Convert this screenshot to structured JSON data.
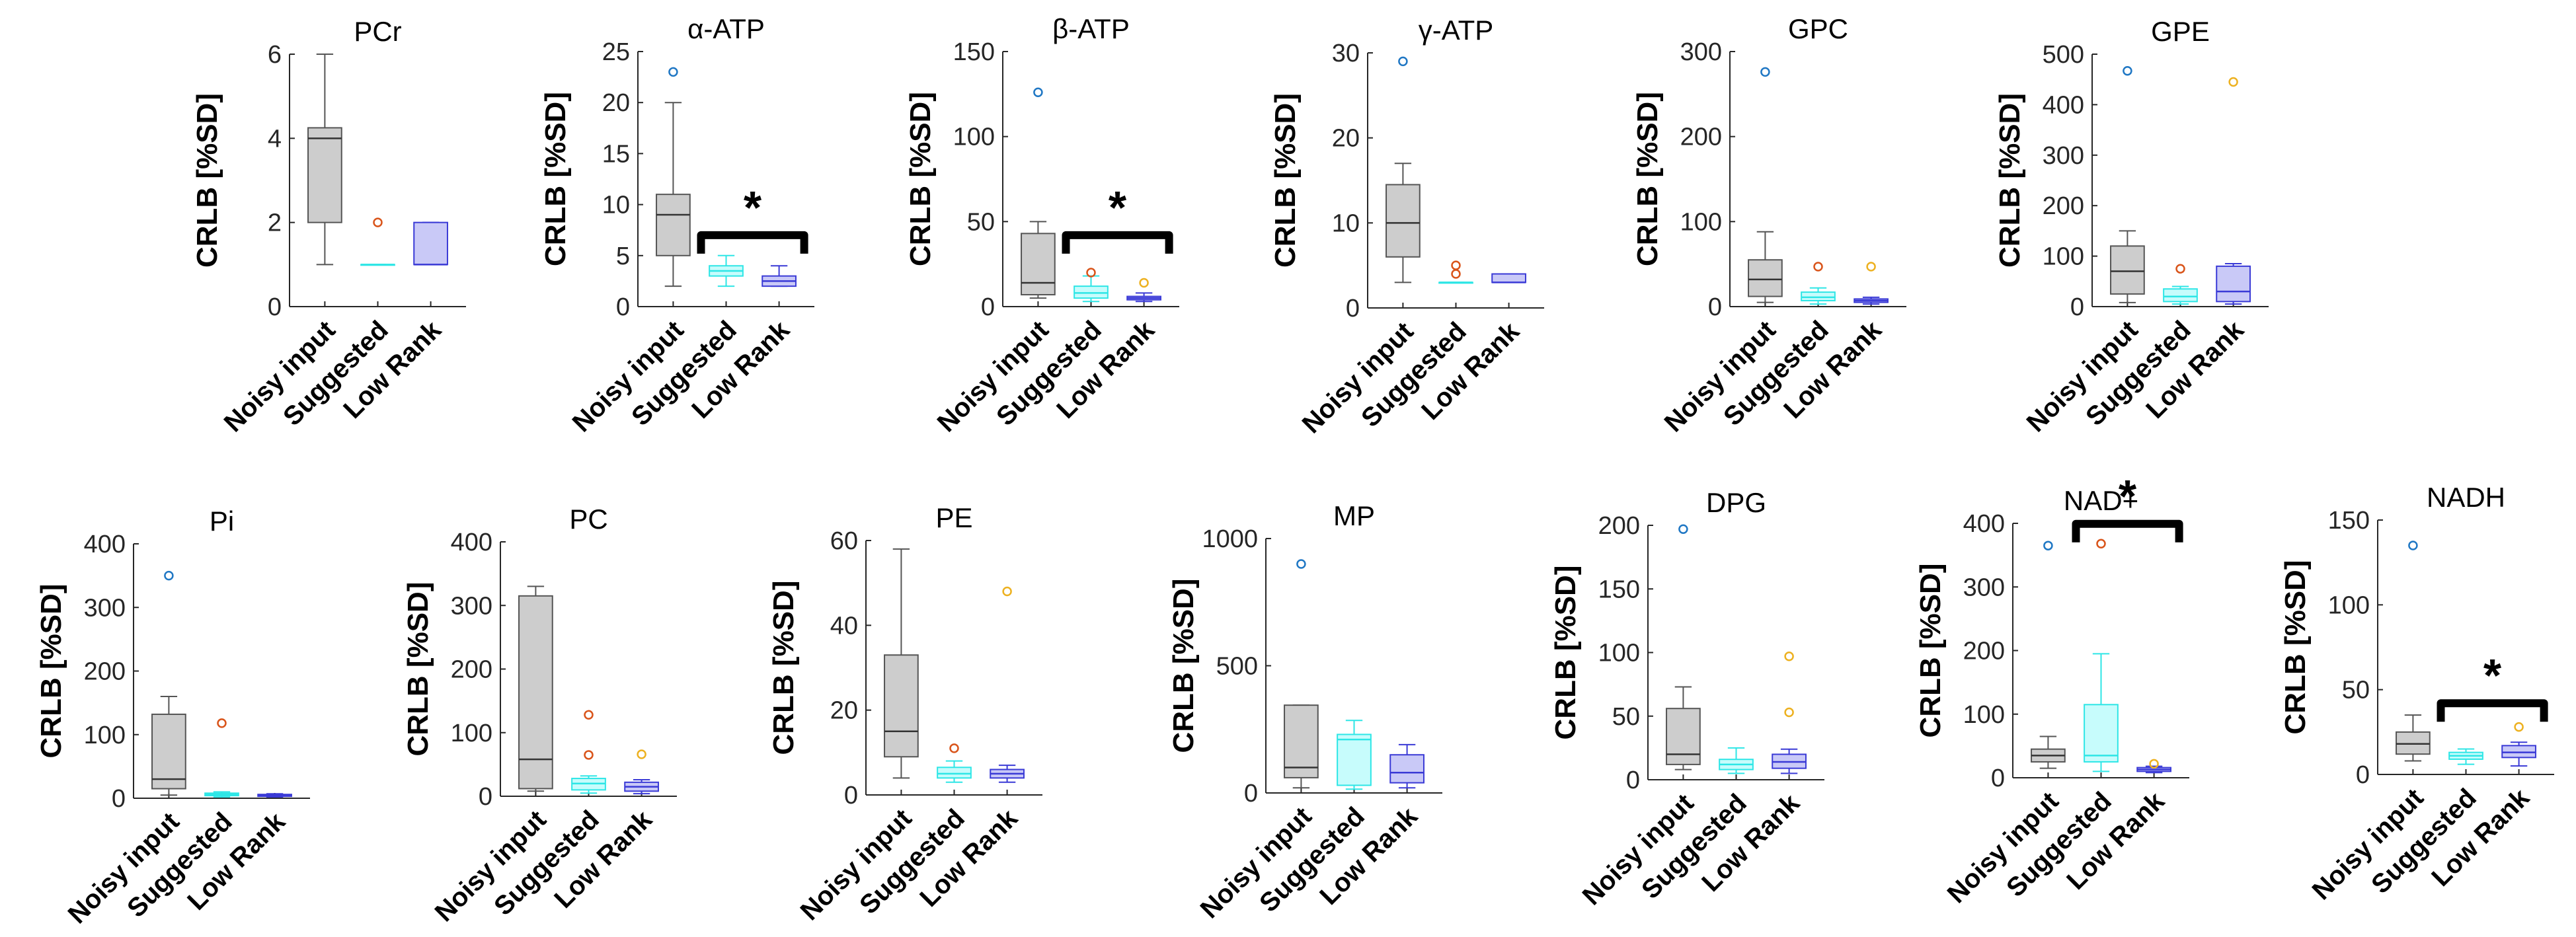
{
  "shared": {
    "ylabel": "CRLB [%SD]",
    "categories": [
      "Noisy input",
      "Suggested",
      "Low Rank"
    ],
    "colors": {
      "noisy_fill": "#cdcdcd",
      "suggested_fill": "#c7fcfc",
      "suggested_edge": "#2ee6e6",
      "lowrank_fill": "#c9c9f7",
      "lowrank_edge": "#3a3ad6",
      "outlier_noisy": "#1f77c4",
      "outlier_suggested": "#d9541a",
      "outlier_lowrank": "#edb120"
    },
    "significance_marker": "*"
  },
  "chart_data": [
    {
      "type": "box",
      "title": "PCr",
      "ylim": [
        0,
        6
      ],
      "yticks": [
        0,
        2,
        4,
        6
      ],
      "series": [
        {
          "name": "Noisy input",
          "min": 1,
          "q1": 2,
          "median": 4,
          "q3": 4.25,
          "max": 6,
          "outliers": []
        },
        {
          "name": "Suggested",
          "min": 1,
          "q1": 1,
          "median": 1,
          "q3": 1,
          "max": 1,
          "outliers": [
            2
          ]
        },
        {
          "name": "Low Rank",
          "min": 1,
          "q1": 1,
          "median": 1,
          "q3": 2,
          "max": 2,
          "outliers": []
        }
      ],
      "significance": null
    },
    {
      "type": "box",
      "title": "α-ATP",
      "ylim": [
        0,
        25
      ],
      "yticks": [
        0,
        5,
        10,
        15,
        20,
        25
      ],
      "series": [
        {
          "name": "Noisy input",
          "min": 2,
          "q1": 5,
          "median": 9,
          "q3": 11,
          "max": 20,
          "outliers": [
            23
          ]
        },
        {
          "name": "Suggested",
          "min": 2,
          "q1": 3,
          "median": 3.5,
          "q3": 4,
          "max": 5,
          "outliers": []
        },
        {
          "name": "Low Rank",
          "min": 2,
          "q1": 2,
          "median": 2.5,
          "q3": 3,
          "max": 4,
          "outliers": []
        }
      ],
      "significance": [
        2,
        3
      ]
    },
    {
      "type": "box",
      "title": "β-ATP",
      "ylim": [
        0,
        150
      ],
      "yticks": [
        0,
        50,
        100,
        150
      ],
      "series": [
        {
          "name": "Noisy input",
          "min": 5,
          "q1": 7,
          "median": 14,
          "q3": 43,
          "max": 50,
          "outliers": [
            126
          ]
        },
        {
          "name": "Suggested",
          "min": 3,
          "q1": 5,
          "median": 8,
          "q3": 12,
          "max": 18,
          "outliers": [
            20
          ]
        },
        {
          "name": "Low Rank",
          "min": 3,
          "q1": 4,
          "median": 5,
          "q3": 6,
          "max": 8,
          "outliers": [
            14
          ]
        }
      ],
      "significance": [
        2,
        3
      ]
    },
    {
      "type": "box",
      "title": "γ-ATP",
      "ylim": [
        0,
        30
      ],
      "yticks": [
        0,
        10,
        20,
        30
      ],
      "series": [
        {
          "name": "Noisy input",
          "min": 3,
          "q1": 6,
          "median": 10,
          "q3": 14.5,
          "max": 17,
          "outliers": [
            29
          ]
        },
        {
          "name": "Suggested",
          "min": 3,
          "q1": 3,
          "median": 3,
          "q3": 3,
          "max": 3,
          "outliers": [
            4,
            5
          ]
        },
        {
          "name": "Low Rank",
          "min": 3,
          "q1": 3,
          "median": 3,
          "q3": 4,
          "max": 4,
          "outliers": []
        }
      ],
      "significance": null
    },
    {
      "type": "box",
      "title": "GPC",
      "ylim": [
        0,
        300
      ],
      "yticks": [
        0,
        100,
        200,
        300
      ],
      "series": [
        {
          "name": "Noisy input",
          "min": 5,
          "q1": 12,
          "median": 32,
          "q3": 55,
          "max": 88,
          "outliers": [
            276
          ]
        },
        {
          "name": "Suggested",
          "min": 3,
          "q1": 7,
          "median": 11,
          "q3": 17,
          "max": 22,
          "outliers": [
            47
          ]
        },
        {
          "name": "Low Rank",
          "min": 3,
          "q1": 5,
          "median": 7,
          "q3": 9,
          "max": 11,
          "outliers": [
            47
          ]
        }
      ],
      "significance": null
    },
    {
      "type": "box",
      "title": "GPE",
      "ylim": [
        0,
        500
      ],
      "yticks": [
        0,
        100,
        200,
        300,
        400,
        500
      ],
      "series": [
        {
          "name": "Noisy input",
          "min": 8,
          "q1": 25,
          "median": 70,
          "q3": 120,
          "max": 150,
          "outliers": [
            467
          ]
        },
        {
          "name": "Suggested",
          "min": 5,
          "q1": 10,
          "median": 20,
          "q3": 35,
          "max": 40,
          "outliers": [
            75
          ]
        },
        {
          "name": "Low Rank",
          "min": 5,
          "q1": 10,
          "median": 30,
          "q3": 80,
          "max": 85,
          "outliers": [
            445
          ]
        }
      ],
      "significance": null
    },
    {
      "type": "box",
      "title": "Pi",
      "ylim": [
        0,
        400
      ],
      "yticks": [
        0,
        100,
        200,
        300,
        400
      ],
      "series": [
        {
          "name": "Noisy input",
          "min": 5,
          "q1": 15,
          "median": 30,
          "q3": 132,
          "max": 160,
          "outliers": [
            350
          ]
        },
        {
          "name": "Suggested",
          "min": 2,
          "q1": 4,
          "median": 6,
          "q3": 8,
          "max": 10,
          "outliers": [
            118
          ]
        },
        {
          "name": "Low Rank",
          "min": 2,
          "q1": 3,
          "median": 4,
          "q3": 6,
          "max": 7,
          "outliers": []
        }
      ],
      "significance": null
    },
    {
      "type": "box",
      "title": "PC",
      "ylim": [
        0,
        400
      ],
      "yticks": [
        0,
        100,
        200,
        300,
        400
      ],
      "series": [
        {
          "name": "Noisy input",
          "min": 8,
          "q1": 12,
          "median": 58,
          "q3": 315,
          "max": 330,
          "outliers": []
        },
        {
          "name": "Suggested",
          "min": 5,
          "q1": 10,
          "median": 20,
          "q3": 28,
          "max": 32,
          "outliers": [
            65,
            128
          ]
        },
        {
          "name": "Low Rank",
          "min": 4,
          "q1": 8,
          "median": 15,
          "q3": 22,
          "max": 26,
          "outliers": [
            66
          ]
        }
      ],
      "significance": null
    },
    {
      "type": "box",
      "title": "PE",
      "ylim": [
        0,
        60
      ],
      "yticks": [
        0,
        20,
        40,
        60
      ],
      "series": [
        {
          "name": "Noisy input",
          "min": 4,
          "q1": 9,
          "median": 15,
          "q3": 33,
          "max": 58,
          "outliers": []
        },
        {
          "name": "Suggested",
          "min": 3,
          "q1": 4,
          "median": 5,
          "q3": 6.5,
          "max": 8,
          "outliers": [
            11
          ]
        },
        {
          "name": "Low Rank",
          "min": 3,
          "q1": 4,
          "median": 5,
          "q3": 6,
          "max": 7,
          "outliers": [
            48
          ]
        }
      ],
      "significance": null
    },
    {
      "type": "box",
      "title": "MP",
      "ylim": [
        0,
        1000
      ],
      "yticks": [
        0,
        500,
        1000
      ],
      "series": [
        {
          "name": "Noisy input",
          "min": 20,
          "q1": 60,
          "median": 100,
          "q3": 345,
          "max": 345,
          "outliers": [
            900
          ]
        },
        {
          "name": "Suggested",
          "min": 15,
          "q1": 30,
          "median": 210,
          "q3": 230,
          "max": 285,
          "outliers": []
        },
        {
          "name": "Low Rank",
          "min": 20,
          "q1": 40,
          "median": 80,
          "q3": 150,
          "max": 190,
          "outliers": []
        }
      ],
      "significance": null
    },
    {
      "type": "box",
      "title": "DPG",
      "ylim": [
        0,
        200
      ],
      "yticks": [
        0,
        50,
        100,
        150,
        200
      ],
      "series": [
        {
          "name": "Noisy input",
          "min": 8,
          "q1": 12,
          "median": 20,
          "q3": 56,
          "max": 73,
          "outliers": [
            197
          ]
        },
        {
          "name": "Suggested",
          "min": 5,
          "q1": 8,
          "median": 12,
          "q3": 16,
          "max": 25,
          "outliers": []
        },
        {
          "name": "Low Rank",
          "min": 5,
          "q1": 9,
          "median": 14,
          "q3": 20,
          "max": 24,
          "outliers": [
            53,
            97
          ]
        }
      ],
      "significance": null
    },
    {
      "type": "box",
      "title": "NAD+",
      "ylim": [
        0,
        400
      ],
      "yticks": [
        0,
        100,
        200,
        300,
        400
      ],
      "series": [
        {
          "name": "Noisy input",
          "min": 15,
          "q1": 25,
          "median": 35,
          "q3": 45,
          "max": 65,
          "outliers": [
            365
          ]
        },
        {
          "name": "Suggested",
          "min": 10,
          "q1": 25,
          "median": 35,
          "q3": 115,
          "max": 195,
          "outliers": [
            368
          ]
        },
        {
          "name": "Low Rank",
          "min": 8,
          "q1": 10,
          "median": 13,
          "q3": 16,
          "max": 18,
          "outliers": [
            22
          ]
        }
      ],
      "significance": [
        2,
        3
      ]
    },
    {
      "type": "box",
      "title": "NADH",
      "ylim": [
        0,
        150
      ],
      "yticks": [
        0,
        50,
        100,
        150
      ],
      "series": [
        {
          "name": "Noisy input",
          "min": 8,
          "q1": 12,
          "median": 18,
          "q3": 25,
          "max": 35,
          "outliers": [
            135
          ]
        },
        {
          "name": "Suggested",
          "min": 6,
          "q1": 9,
          "median": 11,
          "q3": 13,
          "max": 15,
          "outliers": []
        },
        {
          "name": "Low Rank",
          "min": 5,
          "q1": 10,
          "median": 13,
          "q3": 17,
          "max": 19,
          "outliers": [
            28
          ]
        }
      ],
      "significance": [
        2,
        3
      ]
    }
  ]
}
